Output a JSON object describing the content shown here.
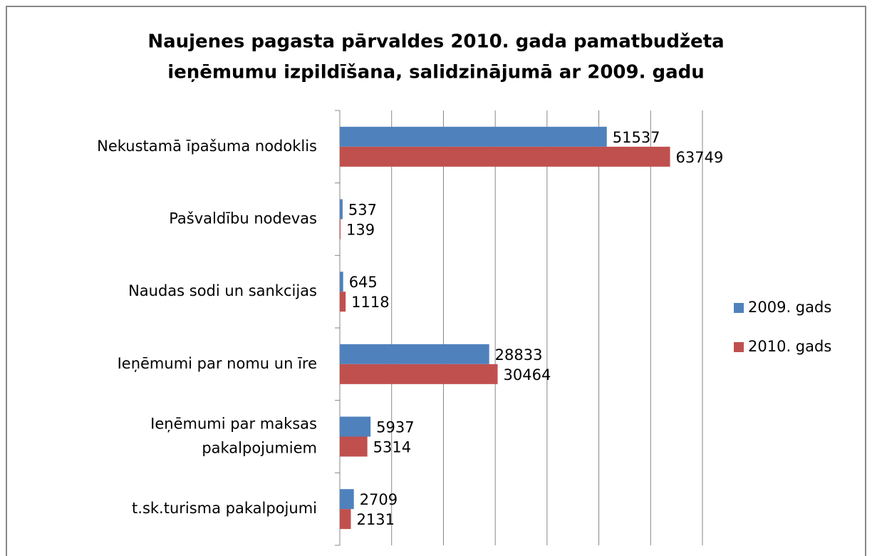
{
  "chart_data": {
    "type": "bar",
    "orientation": "horizontal",
    "title": "Naujenes pagasta pārvaldes 2010. gada pamatbudžeta ieņēmumu izpildīšana, salidzinājumā ar 2009. gadu",
    "categories": [
      "Nekustamā īpašuma nodoklis",
      "Pašvaldību nodevas",
      "Naudas sodi un sankcijas",
      "Ieņēmumi par nomu un īre",
      "Ieņēmumi par maksas pakalpojumiem",
      "t.sk.turisma pakalpojumi"
    ],
    "series": [
      {
        "name": "2009. gads",
        "color": "#4f81bd",
        "values": [
          51537,
          537,
          645,
          28833,
          5937,
          2709
        ]
      },
      {
        "name": "2010. gads",
        "color": "#c0504d",
        "values": [
          63749,
          139,
          1118,
          30464,
          5314,
          2131
        ]
      }
    ],
    "xlim": [
      0,
      70000
    ],
    "xticks": [
      0,
      10000,
      20000,
      30000,
      40000,
      50000,
      60000,
      70000
    ],
    "grid": true,
    "legend": "right"
  }
}
